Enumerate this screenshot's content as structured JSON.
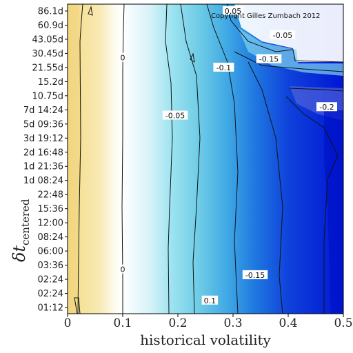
{
  "chart_data": {
    "type": "heatmap",
    "title": "",
    "copyright": "Copyright Gilles Zumbach 2012",
    "xlabel": "historical volatility",
    "ylabel_main": "δt",
    "ylabel_sub": "centered",
    "xlim": [
      0,
      0.5
    ],
    "x_ticks": [
      "0",
      "0.1",
      "0.2",
      "0.3",
      "0.4",
      "0.5"
    ],
    "y_ticks": [
      "01:12",
      "02:24",
      "02:24",
      "03:36",
      "06:00",
      "08:24",
      "12:00",
      "15:36",
      "22:48",
      "1d 08:24",
      "1d 21:36",
      "2d 16:48",
      "3d 19:12",
      "5d 09:36",
      "7d 14:24",
      "10.75d",
      "15.2d",
      "21.55d",
      "30.45d",
      "43.05d",
      "60.9d",
      "86.1d"
    ],
    "contour_levels": [
      0,
      -0.05,
      -0.1,
      -0.15,
      -0.2
    ],
    "contour_labels": [
      {
        "text": "0",
        "x": 0.1,
        "y_index": 17.7
      },
      {
        "text": "0",
        "x": 0.1,
        "y_index": 2.7
      },
      {
        "text": "-0.05",
        "x": 0.195,
        "y_index": 13.6
      },
      {
        "text": "-0.1",
        "x": 0.283,
        "y_index": 17.0
      },
      {
        "text": "-0.05",
        "x": 0.39,
        "y_index": 19.3
      },
      {
        "text": "-0.15",
        "x": 0.365,
        "y_index": 17.6
      },
      {
        "text": "-0.2",
        "x": 0.47,
        "y_index": 14.2
      },
      {
        "text": "-0.15",
        "x": 0.34,
        "y_index": 2.3
      },
      {
        "text": "0.1",
        "x": 0.258,
        "y_index": 0.5
      },
      {
        "text": "0.05",
        "x": 0.3,
        "y_index": 21.0
      }
    ],
    "colorscale": [
      "#f3dc8a",
      "#ffffff",
      "#69d2e6",
      "#1c8fe0",
      "#0018d8"
    ]
  }
}
